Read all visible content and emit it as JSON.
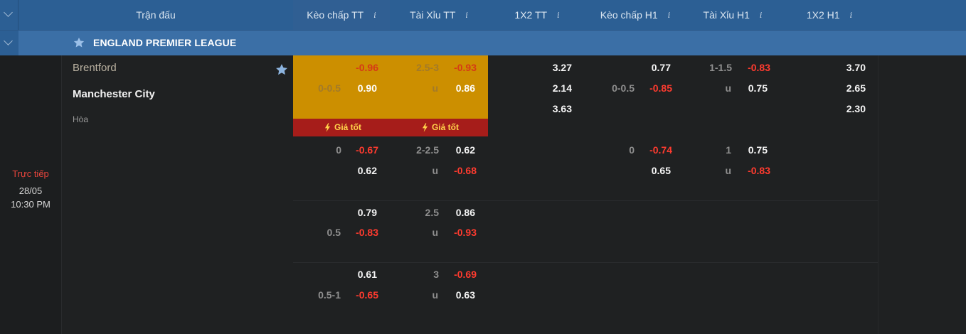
{
  "header": {
    "columns": [
      {
        "label": "Trận đấu",
        "info": ""
      },
      {
        "label": "Kèo chấp TT",
        "info": "i"
      },
      {
        "label": "Tài Xỉu TT",
        "info": "i"
      },
      {
        "label": "1X2 TT",
        "info": "i"
      },
      {
        "label": "Kèo chấp H1",
        "info": "i"
      },
      {
        "label": "Tài Xỉu H1",
        "info": "i"
      },
      {
        "label": "1X2 H1",
        "info": "i"
      }
    ]
  },
  "league": {
    "name": "ENGLAND PREMIER LEAGUE",
    "icon": "star-icon"
  },
  "match": {
    "status": "Trực tiếp",
    "date": "28/05",
    "time": "10:30 PM",
    "home": "Brentford",
    "away": "Manchester City",
    "draw": "Hòa",
    "best_price_label": "Giá tốt"
  },
  "odds": {
    "hdp_ft": [
      {
        "line_home": "",
        "home": "-0.96",
        "line_away": "0-0.5",
        "away": "0.90"
      },
      {
        "line_home": "0",
        "home": "-0.67",
        "line_away": "",
        "away": "0.62"
      },
      {
        "line_home": "",
        "home": "0.79",
        "line_away": "0.5",
        "away": "-0.83"
      },
      {
        "line_home": "",
        "home": "0.61",
        "line_away": "0.5-1",
        "away": "-0.65"
      }
    ],
    "ou_ft": [
      {
        "line": "2.5-3",
        "over": "-0.93",
        "u": "u",
        "under": "0.86"
      },
      {
        "line": "2-2.5",
        "over": "0.62",
        "u": "u",
        "under": "-0.68"
      },
      {
        "line": "2.5",
        "over": "0.86",
        "u": "u",
        "under": "-0.93"
      },
      {
        "line": "3",
        "over": "-0.69",
        "u": "u",
        "under": "0.63"
      }
    ],
    "x12_ft": [
      "3.27",
      "2.14",
      "3.63"
    ],
    "hdp_h1": [
      {
        "line_home": "",
        "home": "0.77",
        "line_away": "0-0.5",
        "away": "-0.85"
      },
      {
        "line_home": "0",
        "home": "-0.74",
        "line_away": "",
        "away": "0.65"
      }
    ],
    "ou_h1": [
      {
        "line": "1-1.5",
        "over": "-0.83",
        "u": "u",
        "under": "0.75"
      },
      {
        "line": "1",
        "over": "0.75",
        "u": "u",
        "under": "-0.83"
      }
    ],
    "x12_h1": [
      "3.70",
      "2.65",
      "2.30"
    ]
  },
  "colors": {
    "header_bg": "#2c5f94",
    "league_bg": "#3b6fa6",
    "highlight": "#cc8f00",
    "best_bar": "#a61d1a",
    "negative": "#ff3b2f"
  }
}
